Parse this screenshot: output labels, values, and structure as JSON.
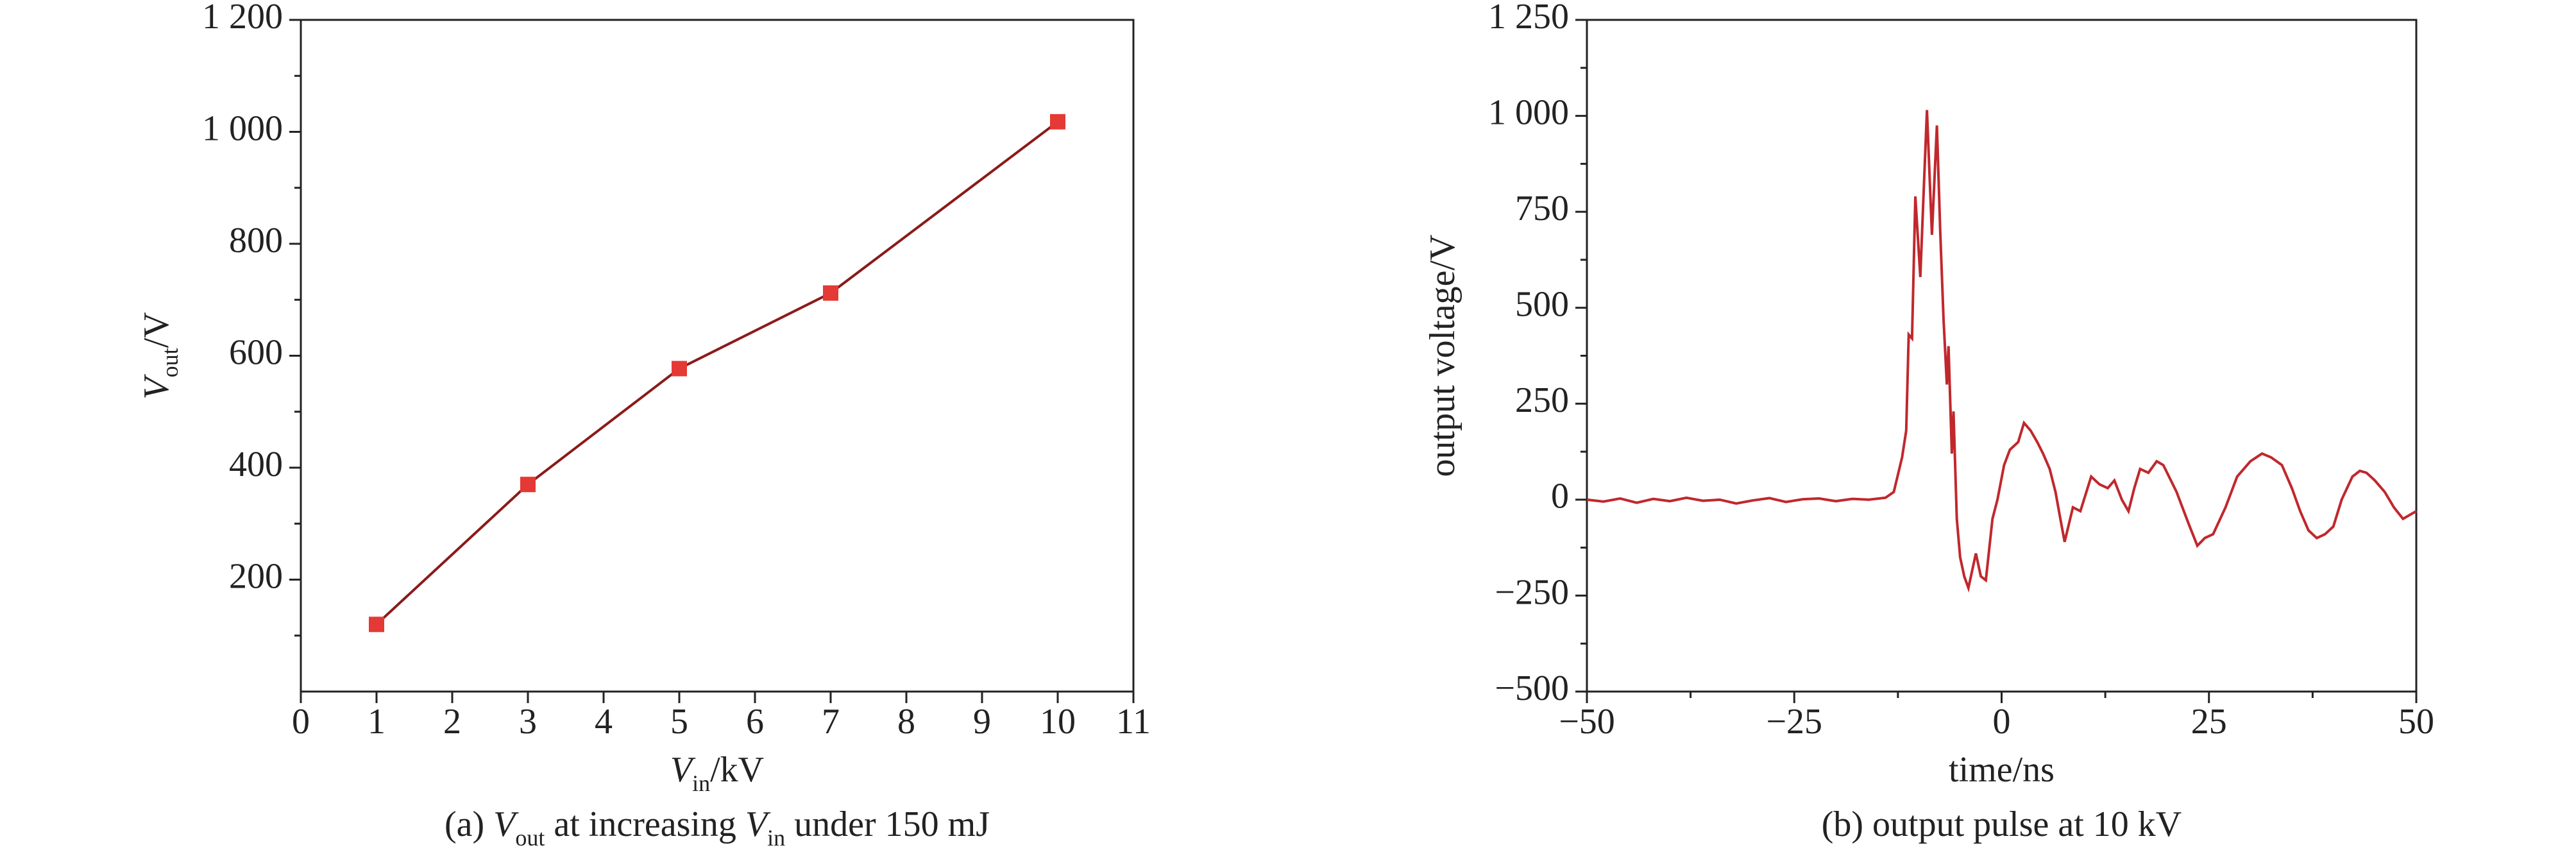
{
  "chart_data": [
    {
      "type": "line",
      "xlabel": [
        {
          "text": "V",
          "style": "italic"
        },
        {
          "text": "in",
          "style": "sub"
        },
        {
          "text": "/kV",
          "style": "normal"
        }
      ],
      "ylabel": [
        {
          "text": "V",
          "style": "italic"
        },
        {
          "text": "out",
          "style": "sub"
        },
        {
          "text": "/V",
          "style": "normal"
        }
      ],
      "caption": [
        {
          "text": "(a) ",
          "style": "normal"
        },
        {
          "text": "V",
          "style": "italic"
        },
        {
          "text": "out",
          "style": "sub"
        },
        {
          "text": " at increasing ",
          "style": "normal"
        },
        {
          "text": "V",
          "style": "italic"
        },
        {
          "text": "in",
          "style": "sub"
        },
        {
          "text": " under 150 mJ",
          "style": "normal"
        }
      ],
      "x": [
        1,
        3,
        5,
        7,
        10
      ],
      "values": [
        120,
        370,
        577,
        712,
        1018
      ],
      "color": "#8b1a1a",
      "marker": "square",
      "marker_color": "#e53935",
      "xlim": [
        0,
        11
      ],
      "xticks": [
        0,
        1,
        2,
        3,
        4,
        5,
        6,
        7,
        8,
        9,
        10,
        11
      ],
      "ylim": [
        0,
        1200
      ],
      "yticks": [
        200,
        400,
        600,
        800,
        {
          "value": 1000,
          "label": "1 000"
        },
        {
          "value": 1200,
          "label": "1 200"
        }
      ],
      "yminorticks": [
        100,
        300,
        500,
        700,
        900,
        1100
      ]
    },
    {
      "type": "line",
      "xlabel": [
        {
          "text": "time/ns",
          "style": "normal"
        }
      ],
      "ylabel": [
        {
          "text": "output voltage/V",
          "style": "normal"
        }
      ],
      "caption": [
        {
          "text": "(b) output pulse at 10 kV",
          "style": "normal"
        }
      ],
      "x": [
        -50,
        -48,
        -46,
        -44,
        -42,
        -40,
        -38,
        -36,
        -34,
        -32,
        -30,
        -28,
        -26,
        -24,
        -22,
        -20,
        -18,
        -16,
        -14,
        -13,
        -12,
        -11.5,
        -11.2,
        -10.8,
        -10.4,
        -9.8,
        -9.4,
        -9.0,
        -8.4,
        -7.8,
        -7.4,
        -7.0,
        -6.6,
        -6.4,
        -6.0,
        -5.8,
        -5.4,
        -5,
        -4.5,
        -4.0,
        -3.5,
        -3.1,
        -2.5,
        -1.9,
        -1.1,
        -0.5,
        0.3,
        1,
        2,
        2.7,
        3.5,
        4.3,
        5,
        5.8,
        6.5,
        7.0,
        7.6,
        8.6,
        9.5,
        10.8,
        11.8,
        12.8,
        13.6,
        14.5,
        15.3,
        16,
        16.7,
        17.7,
        18.7,
        19.5,
        21.1,
        22.5,
        23.6,
        24.5,
        25.5,
        27,
        28.4,
        30,
        31.4,
        32.5,
        33.8,
        35,
        36,
        37,
        38,
        39,
        40,
        41,
        42.3,
        43.2,
        44,
        45,
        46.2,
        47.3,
        48.4,
        49.2,
        50
      ],
      "values": [
        0,
        -5,
        3,
        -8,
        2,
        -4,
        5,
        -3,
        0,
        -10,
        -2,
        4,
        -6,
        1,
        3,
        -4,
        2,
        0,
        5,
        20,
        110,
        180,
        430,
        420,
        790,
        580,
        800,
        1015,
        690,
        975,
        700,
        470,
        300,
        400,
        120,
        230,
        -50,
        -150,
        -200,
        -230,
        -180,
        -140,
        -200,
        -210,
        -50,
        0,
        90,
        130,
        150,
        200,
        180,
        150,
        120,
        80,
        20,
        -40,
        -110,
        -20,
        -30,
        60,
        40,
        30,
        50,
        0,
        -30,
        30,
        80,
        70,
        100,
        90,
        20,
        -60,
        -120,
        -100,
        -90,
        -20,
        60,
        100,
        120,
        110,
        90,
        30,
        -30,
        -80,
        -100,
        -90,
        -70,
        0,
        60,
        75,
        70,
        50,
        20,
        -20,
        -50,
        -40,
        -30
      ],
      "color": "#c0282d",
      "xlim": [
        -50,
        50
      ],
      "xticks": [
        {
          "value": -50,
          "label": "−50"
        },
        {
          "value": -25,
          "label": "−25"
        },
        0,
        25,
        50
      ],
      "xminorticks": [
        -37.5,
        -12.5,
        12.5,
        37.5
      ],
      "ylim": [
        -500,
        1250
      ],
      "yticks": [
        {
          "value": -500,
          "label": "−500"
        },
        {
          "value": -250,
          "label": "−250"
        },
        0,
        250,
        500,
        750,
        {
          "value": 1000,
          "label": "1 000"
        },
        {
          "value": 1250,
          "label": "1 250"
        }
      ],
      "yminorticks": [
        -375,
        -125,
        125,
        375,
        625,
        875,
        1125
      ]
    }
  ]
}
